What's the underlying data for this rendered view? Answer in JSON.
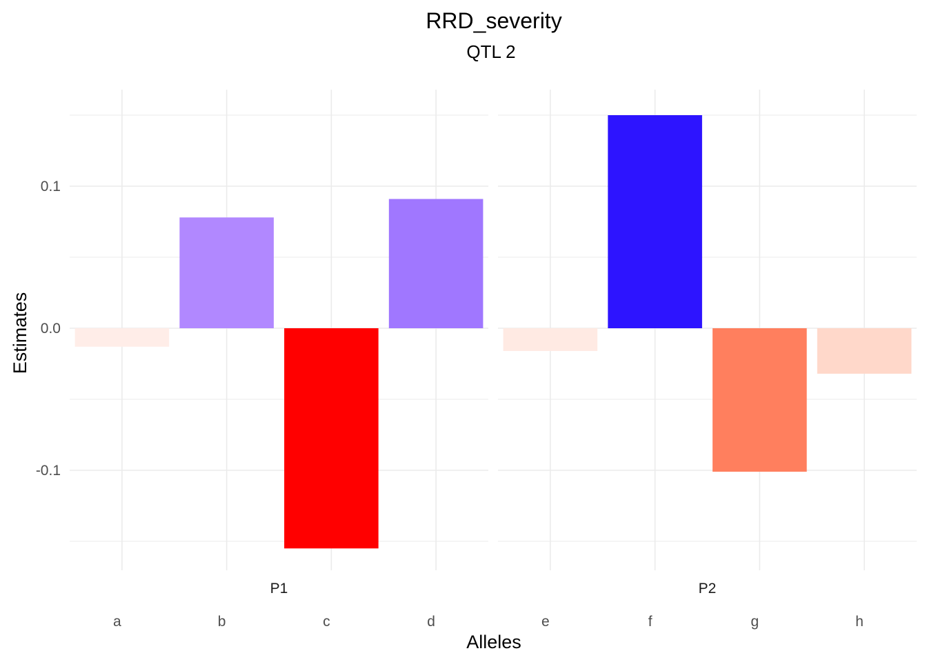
{
  "chart_data": {
    "type": "bar",
    "title": "RRD_severity",
    "subtitle": "QTL 2",
    "xlabel": "Alleles",
    "ylabel": "Estimates",
    "ylim": [
      -0.17,
      0.167
    ],
    "yticks": [
      -0.1,
      0.0,
      0.1
    ],
    "ytick_labels": [
      "-0.1",
      "0.0",
      "0.1"
    ],
    "grid": true,
    "panels": [
      {
        "name": "P1",
        "categories": [
          "a",
          "b",
          "c",
          "d"
        ],
        "values": [
          -0.013,
          0.078,
          -0.155,
          0.091
        ],
        "colors": [
          "#FFEDE8",
          "#B188FF",
          "#FF0000",
          "#A077FF"
        ]
      },
      {
        "name": "P2",
        "categories": [
          "e",
          "f",
          "g",
          "h"
        ],
        "values": [
          -0.016,
          0.15,
          -0.101,
          -0.032
        ],
        "colors": [
          "#FFEAE3",
          "#2D14FF",
          "#FF7F5E",
          "#FFD8CA"
        ]
      }
    ]
  }
}
